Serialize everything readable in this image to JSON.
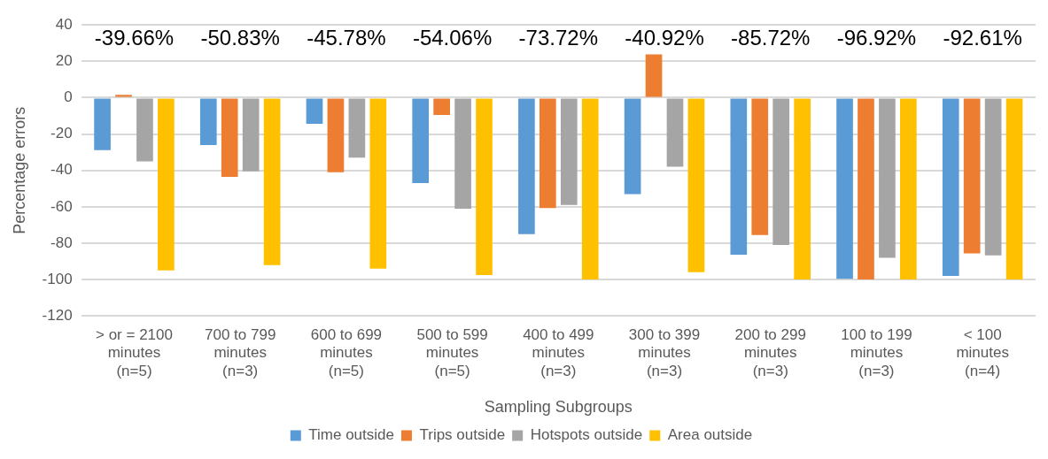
{
  "chart_data": {
    "type": "bar",
    "xlabel": "Sampling Subgroups",
    "ylabel": "Percentage errors",
    "categories": [
      "> or = 2100 minutes (n=5)",
      "700 to 799 minutes (n=3)",
      "600 to 699 minutes (n=5)",
      "500 to 599 minutes (n=5)",
      "400 to 499 minutes (n=3)",
      "300 to 399 minutes (n=3)",
      "200 to 299 minutes (n=3)",
      "100 to 199 minutes (n=3)",
      "< 100 minutes (n=4)"
    ],
    "series": [
      {
        "name": "Time outside",
        "color": "#5b9bd5",
        "values": [
          -28.8,
          -26,
          -14.4,
          -47,
          -75,
          -53,
          -86.3,
          -99.6,
          -98
        ]
      },
      {
        "name": "Trips outside",
        "color": "#ed7d31",
        "values": [
          1.5,
          -43.5,
          -41,
          -9.5,
          -60.7,
          23.8,
          -75.5,
          -100,
          -85.6
        ]
      },
      {
        "name": "Hotspots outside",
        "color": "#a5a5a5",
        "values": [
          -35,
          -40.5,
          -33,
          -61,
          -59,
          -38,
          -81,
          -88,
          -86.7
        ]
      },
      {
        "name": "Area outside",
        "color": "#ffc000",
        "values": [
          -95,
          -92,
          -94,
          -97.5,
          -100,
          -96,
          -100,
          -100,
          -100
        ]
      }
    ],
    "ylim": [
      -120,
      40
    ],
    "yticks": [
      -120,
      -100,
      -80,
      -60,
      -40,
      -20,
      0,
      20,
      40
    ],
    "grid": "y",
    "legend": "bottom",
    "annotations": [
      "-39.66%",
      "-50.83%",
      "-45.78%",
      "-54.06%",
      "-73.72%",
      "-40.92%",
      "-85.72%",
      "-96.92%",
      "-92.61%"
    ]
  }
}
